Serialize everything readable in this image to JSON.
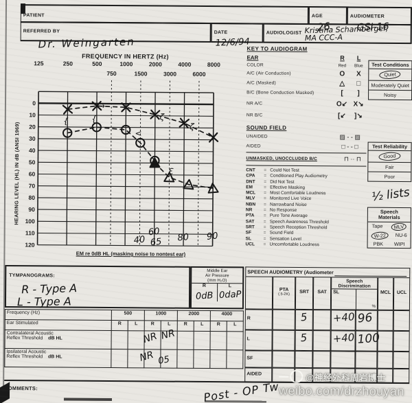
{
  "colors": {
    "ink": "#1b1b1b",
    "paper": "#e9e7e2"
  },
  "header": {
    "patient_label": "PATIENT",
    "patient_value": "",
    "age_label": "AGE",
    "age_value": "26",
    "audiometer_label": "AUDIOMETER",
    "audiometer_value": "GSI-16",
    "referred_label": "REFERRED BY",
    "referred_value": "Dr. Weingarten",
    "date_label": "DATE",
    "date_value": "12/6/94",
    "audiologist_label": "AUDIOLOGIST",
    "audiologist_value": "Kristina Schamberger, MA CCC-A"
  },
  "chart_data": {
    "type": "scatter",
    "title": "FREQUENCY IN HERTZ (Hz)",
    "ylabel": "HEARING LEVEL (HL) IN dB (ANSI 1969)",
    "ylim": [
      0,
      120
    ],
    "y_step": 10,
    "xlabel_ticks_major": [
      125,
      250,
      500,
      1000,
      2000,
      4000,
      8000
    ],
    "xlabel_ticks_minor": [
      750,
      1500,
      3000,
      6000
    ],
    "series": [
      {
        "name": "Left ear A/C (X)",
        "symbol": "X",
        "points": [
          [
            250,
            5
          ],
          [
            500,
            2
          ],
          [
            1000,
            3
          ],
          [
            2000,
            9
          ],
          [
            4000,
            16
          ],
          [
            8000,
            28
          ]
        ]
      },
      {
        "name": "Right ear A/C (O)",
        "symbol": "O",
        "points": [
          [
            250,
            25
          ],
          [
            500,
            20
          ],
          [
            1000,
            22
          ],
          [
            1500,
            33
          ],
          [
            2000,
            48
          ]
        ]
      },
      {
        "name": "Right ear masked A/C (triangle)",
        "symbol": "T",
        "filled_first": true,
        "points": [
          [
            2000,
            50
          ],
          [
            3000,
            62
          ],
          [
            4500,
            68
          ],
          [
            8000,
            71
          ]
        ]
      }
    ],
    "scribbles": [
      {
        "f": 560,
        "db": 2,
        "g": "→"
      },
      {
        "f": 240,
        "db": 15,
        "g": "{"
      },
      {
        "f": 470,
        "db": 13,
        "g": "{"
      },
      {
        "f": 1350,
        "db": 25,
        "g": "<"
      },
      {
        "f": 2350,
        "db": 11,
        "g": "ζ"
      },
      {
        "f": 4800,
        "db": 19,
        "g": "ζ"
      },
      {
        "f": 2900,
        "db": 57,
        "g": "Ɛ"
      }
    ],
    "em_caption": "EM re 0dB HL (masking noise to nontest ear)",
    "em_values": [
      {
        "f": 1500,
        "v": "40",
        "dy": 6
      },
      {
        "f": 2000,
        "v": "60",
        "dy": -6
      },
      {
        "f": 2100,
        "v": "65",
        "dy": 9
      },
      {
        "f": 4000,
        "v": "80",
        "dy": 2
      },
      {
        "f": 8000,
        "v": "90",
        "dy": 0
      }
    ]
  },
  "key": {
    "title": "KEY TO AUDIOGRAM",
    "ear": {
      "title": "EAR",
      "r_head": "R",
      "l_head": "L"
    },
    "rows": [
      {
        "label": "COLOR",
        "r": "Red",
        "l": "Blue"
      },
      {
        "label": "A/C (Air Conduction)",
        "r": "O",
        "l": "X"
      },
      {
        "label": "A/C (Masked)",
        "r": "△",
        "l": "□"
      },
      {
        "label": "B/C (Bone Conduction Masked)",
        "r": "[",
        "l": "]"
      },
      {
        "label": "NR A/C",
        "r": "O↙",
        "l": "X↘"
      },
      {
        "label": "NR B/C",
        "r": "[↙",
        "l": "]↘"
      }
    ],
    "sound_field": {
      "title": "SOUND FIELD",
      "unaided_label": "UNAIDED",
      "unaided_sym": "▨ - - ▨",
      "aided_label": "AIDED",
      "aided_sym": "□ - - □"
    },
    "unmasked_label": "UNMASKED, UNOCCLUDED B/C",
    "unmasked_sym": "⊓ ·· ⊓",
    "abbr": [
      [
        "CNT",
        "Could Not Test"
      ],
      [
        "CPA",
        "Conditioned Play Audiometry"
      ],
      [
        "DNT",
        "Did Not Test"
      ],
      [
        "EM",
        "Effective Masking"
      ],
      [
        "MCL",
        "Most Comfortable Loudness"
      ],
      [
        "MLV",
        "Monitored Live Voice"
      ],
      [
        "NBN",
        "Narrowband Noise"
      ],
      [
        "NR",
        "No Response"
      ],
      [
        "PTA",
        "Pure Tone Average"
      ],
      [
        "SAT",
        "Speech Awareness Threshold"
      ],
      [
        "SRT",
        "Speech Reception Threshold"
      ],
      [
        "SF",
        "Sound Field"
      ],
      [
        "SL",
        "Sensation Level"
      ],
      [
        "UCL",
        "Uncomfortable Loudness"
      ]
    ]
  },
  "side": {
    "test_conditions": {
      "title": "Test Conditions",
      "options": [
        "Quiet",
        "Moderately Quiet",
        "Noisy"
      ],
      "selected": "Quiet"
    },
    "test_reliability": {
      "title": "Test Reliability",
      "options": [
        "Good",
        "Fair",
        "Poor"
      ],
      "selected": "Good"
    },
    "note": "½ lists",
    "speech_materials": {
      "title": "Speech Materials",
      "items": [
        "Tape",
        "MLV",
        "W-22",
        "NU-6",
        "PBK",
        "WIPI"
      ],
      "circled": [
        "MLV",
        "W-22"
      ]
    }
  },
  "tymp": {
    "title": "TYMPANOGRAMS:",
    "line_r": "R - Type A",
    "line_l": "L - Type A",
    "me": {
      "t1": "Middle Ear",
      "t2": "Air Pressure",
      "t3": "(mm H₂O)",
      "r": "R",
      "l": "L",
      "r_val": "0dB",
      "l_val": "0daP"
    }
  },
  "reflex": {
    "freq_label": "Frequency (Hz)",
    "ear_label": "Ear Stimulated",
    "freqs": [
      "500",
      "1000",
      "2000",
      "4000"
    ],
    "r": "R",
    "l": "L",
    "contra1": "Contralateral Acoustic",
    "contra2": "Reflex Threshold",
    "ipsi1": "Ipsilateral Acoustic",
    "ipsi2": "Reflex Threshold",
    "dbhl": "dB HL",
    "marks": [
      {
        "text": "NR"
      },
      {
        "text": "NR"
      },
      {
        "text": "NR"
      },
      {
        "text": "05"
      }
    ]
  },
  "speech": {
    "title": "SPEECH AUDIOMETRY (Audiometer",
    "pta": "PTA",
    "pta_sub": "(.5-2K)",
    "srt": "SRT",
    "sat": "SAT",
    "sd": "Speech Discrimination",
    "sl": "SL",
    "pct": "%",
    "mcl": "MCL",
    "ucl": "UCL",
    "rows": [
      {
        "label": "R",
        "srt": "5",
        "sl": "+40",
        "disc": "96"
      },
      {
        "label": "L",
        "srt": "5",
        "sl": "+40",
        "disc": "100"
      },
      {
        "label": "SF",
        "srt": "",
        "sl": "",
        "disc": ""
      },
      {
        "label": "AIDED",
        "srt": "",
        "sl": "",
        "disc": ""
      }
    ]
  },
  "comments": {
    "label": "COMMENTS:",
    "handwritten": "Post - OP Tw"
  },
  "watermark": {
    "handle": "@神经外科周岩博士",
    "url": "weibo.com/drzhouyan"
  }
}
